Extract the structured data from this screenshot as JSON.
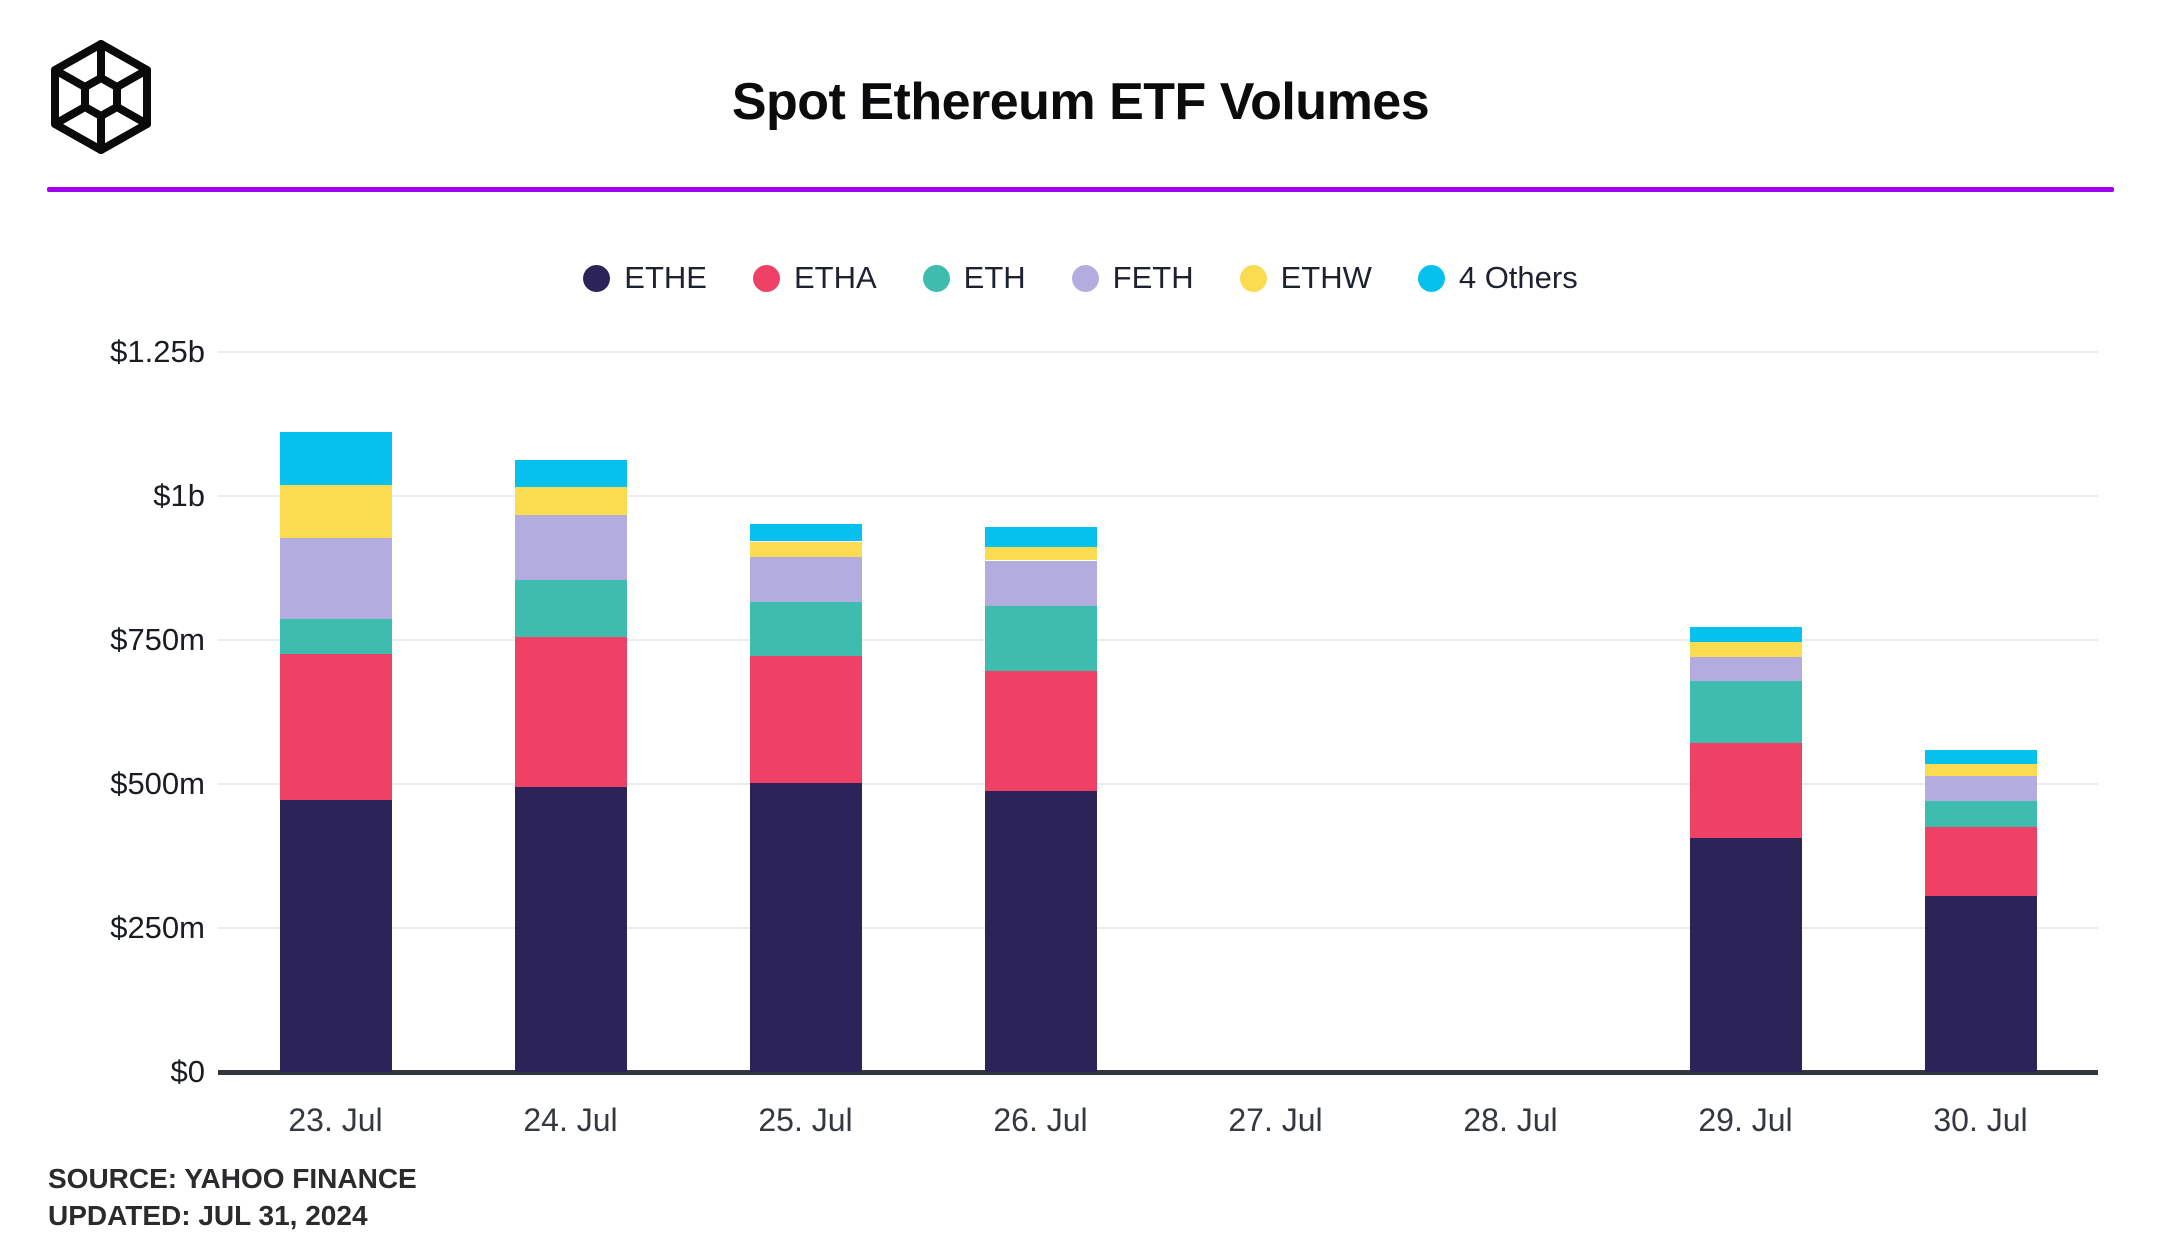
{
  "header": {
    "logo_name": "wireframe-cube-logo",
    "divider_color": "#a100f1"
  },
  "source": {
    "line1": "SOURCE: YAHOO FINANCE",
    "line2": "UPDATED: JUL 31, 2024"
  },
  "chart_data": {
    "type": "bar",
    "stacked": true,
    "title": "Spot Ethereum ETF Volumes",
    "unit": "USD, m = millions, b = billions",
    "categories": [
      "23. Jul",
      "24. Jul",
      "25. Jul",
      "26. Jul",
      "27. Jul",
      "28. Jul",
      "29. Jul",
      "30. Jul"
    ],
    "series": [
      {
        "name": "ETHE",
        "color": "#2c2459",
        "values": [
          472,
          494,
          502,
          487,
          0,
          0,
          407,
          306
        ]
      },
      {
        "name": "ETHA",
        "color": "#ef4066",
        "values": [
          253,
          261,
          221,
          209,
          0,
          0,
          165,
          120
        ]
      },
      {
        "name": "ETH",
        "color": "#3ebcad",
        "values": [
          62,
          100,
          93,
          113,
          0,
          0,
          107,
          45
        ]
      },
      {
        "name": "FETH",
        "color": "#b3addf",
        "values": [
          140,
          112,
          78,
          79,
          0,
          0,
          41,
          43
        ]
      },
      {
        "name": "ETHW",
        "color": "#fbdb4f",
        "values": [
          92,
          49,
          27,
          23,
          0,
          0,
          26,
          21
        ]
      },
      {
        "name": "4 Others",
        "color": "#06c1ee",
        "values": [
          92,
          46,
          30,
          36,
          0,
          0,
          27,
          24
        ]
      }
    ],
    "totals_m": [
      1111,
      1062,
      951,
      947,
      0,
      0,
      773,
      559
    ],
    "xlabel": "",
    "ylabel": "",
    "ylim": [
      0,
      1250
    ],
    "yticks": [
      {
        "value": 0,
        "label": "$0"
      },
      {
        "value": 250,
        "label": "$250m"
      },
      {
        "value": 500,
        "label": "$500m"
      },
      {
        "value": 750,
        "label": "$750m"
      },
      {
        "value": 1000,
        "label": "$1b"
      },
      {
        "value": 1250,
        "label": "$1.25b"
      }
    ],
    "grid": true,
    "legend_position": "top-center"
  }
}
